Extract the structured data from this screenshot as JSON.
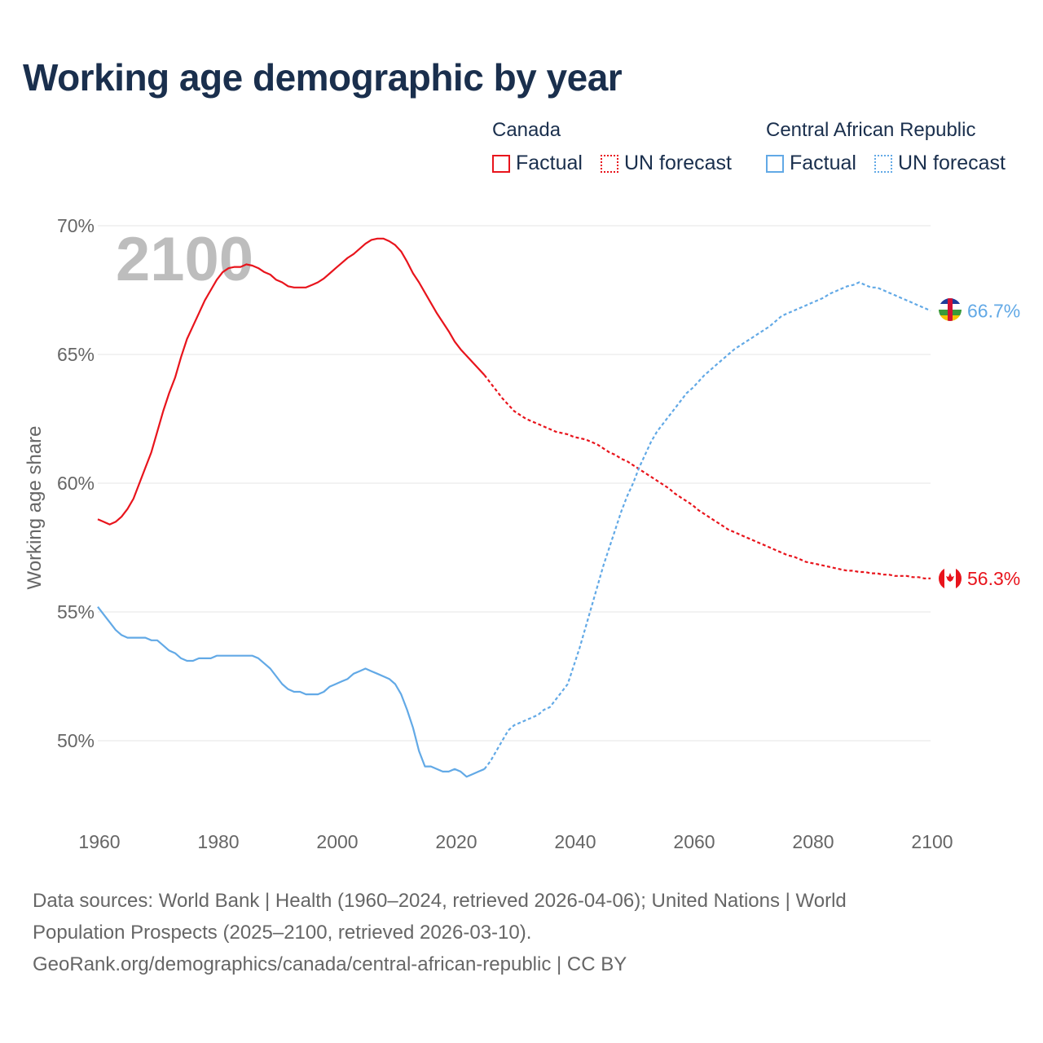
{
  "title": "Working age demographic by year",
  "legend": {
    "groups": [
      {
        "name": "Canada",
        "color": "#e8141c",
        "factual_label": "Factual",
        "forecast_label": "UN forecast"
      },
      {
        "name": "Central African Republic",
        "color": "#62a9e6",
        "factual_label": "Factual",
        "forecast_label": "UN forecast"
      }
    ]
  },
  "footer": {
    "line1": "Data sources: World Bank | Health (1960–2024, retrieved 2026-04-06); United Nations | World",
    "line2": "Population Prospects (2025–2100, retrieved 2026-03-10).",
    "line3": "GeoRank.org/demographics/canada/central-african-republic | CC BY"
  },
  "chart_data": {
    "type": "line",
    "title": "Working age demographic by year",
    "year_watermark": "2100",
    "xlabel": "",
    "ylabel": "Working age share",
    "xlim": [
      1960,
      2103
    ],
    "ylim": [
      47,
      70.5
    ],
    "x_ticks": [
      1960,
      1980,
      2000,
      2020,
      2040,
      2060,
      2080,
      2100
    ],
    "y_ticks": [
      50,
      55,
      60,
      65,
      70
    ],
    "y_tick_labels": [
      "50%",
      "55%",
      "60%",
      "65%",
      "70%"
    ],
    "grid": true,
    "forecast_start": 2025,
    "series": [
      {
        "name": "Canada",
        "color": "#e8141c",
        "end_label": "56.3%",
        "flag": "canada",
        "points": [
          [
            1960,
            58.6
          ],
          [
            1961,
            58.5
          ],
          [
            1962,
            58.4
          ],
          [
            1963,
            58.5
          ],
          [
            1964,
            58.7
          ],
          [
            1965,
            59.0
          ],
          [
            1966,
            59.4
          ],
          [
            1967,
            60.0
          ],
          [
            1968,
            60.6
          ],
          [
            1969,
            61.2
          ],
          [
            1970,
            62.0
          ],
          [
            1971,
            62.8
          ],
          [
            1972,
            63.5
          ],
          [
            1973,
            64.1
          ],
          [
            1974,
            64.9
          ],
          [
            1975,
            65.6
          ],
          [
            1976,
            66.1
          ],
          [
            1977,
            66.6
          ],
          [
            1978,
            67.1
          ],
          [
            1979,
            67.5
          ],
          [
            1980,
            67.9
          ],
          [
            1981,
            68.2
          ],
          [
            1982,
            68.35
          ],
          [
            1983,
            68.4
          ],
          [
            1984,
            68.4
          ],
          [
            1985,
            68.5
          ],
          [
            1986,
            68.45
          ],
          [
            1987,
            68.35
          ],
          [
            1988,
            68.2
          ],
          [
            1989,
            68.1
          ],
          [
            1990,
            67.9
          ],
          [
            1991,
            67.8
          ],
          [
            1992,
            67.65
          ],
          [
            1993,
            67.6
          ],
          [
            1994,
            67.6
          ],
          [
            1995,
            67.6
          ],
          [
            1996,
            67.7
          ],
          [
            1997,
            67.8
          ],
          [
            1998,
            67.95
          ],
          [
            1999,
            68.15
          ],
          [
            2000,
            68.35
          ],
          [
            2001,
            68.55
          ],
          [
            2002,
            68.75
          ],
          [
            2003,
            68.9
          ],
          [
            2004,
            69.1
          ],
          [
            2005,
            69.3
          ],
          [
            2006,
            69.45
          ],
          [
            2007,
            69.5
          ],
          [
            2008,
            69.5
          ],
          [
            2009,
            69.4
          ],
          [
            2010,
            69.25
          ],
          [
            2011,
            69.0
          ],
          [
            2012,
            68.6
          ],
          [
            2013,
            68.15
          ],
          [
            2014,
            67.8
          ],
          [
            2015,
            67.4
          ],
          [
            2016,
            67.0
          ],
          [
            2017,
            66.6
          ],
          [
            2018,
            66.25
          ],
          [
            2019,
            65.9
          ],
          [
            2020,
            65.5
          ],
          [
            2021,
            65.2
          ],
          [
            2022,
            64.95
          ],
          [
            2023,
            64.7
          ],
          [
            2024,
            64.45
          ],
          [
            2025,
            64.2
          ],
          [
            2026,
            63.9
          ],
          [
            2027,
            63.6
          ],
          [
            2028,
            63.3
          ],
          [
            2029,
            63.05
          ],
          [
            2030,
            62.8
          ],
          [
            2031,
            62.65
          ],
          [
            2032,
            62.5
          ],
          [
            2033,
            62.4
          ],
          [
            2034,
            62.3
          ],
          [
            2035,
            62.2
          ],
          [
            2036,
            62.1
          ],
          [
            2037,
            62.0
          ],
          [
            2038,
            61.95
          ],
          [
            2039,
            61.9
          ],
          [
            2040,
            61.8
          ],
          [
            2041,
            61.75
          ],
          [
            2042,
            61.7
          ],
          [
            2043,
            61.6
          ],
          [
            2044,
            61.5
          ],
          [
            2045,
            61.35
          ],
          [
            2046,
            61.2
          ],
          [
            2047,
            61.1
          ],
          [
            2048,
            60.95
          ],
          [
            2049,
            60.85
          ],
          [
            2050,
            60.7
          ],
          [
            2051,
            60.55
          ],
          [
            2052,
            60.4
          ],
          [
            2053,
            60.25
          ],
          [
            2054,
            60.1
          ],
          [
            2055,
            59.95
          ],
          [
            2056,
            59.8
          ],
          [
            2057,
            59.6
          ],
          [
            2058,
            59.45
          ],
          [
            2059,
            59.3
          ],
          [
            2060,
            59.15
          ],
          [
            2061,
            58.95
          ],
          [
            2062,
            58.8
          ],
          [
            2063,
            58.65
          ],
          [
            2064,
            58.5
          ],
          [
            2065,
            58.35
          ],
          [
            2066,
            58.2
          ],
          [
            2067,
            58.1
          ],
          [
            2068,
            58.0
          ],
          [
            2069,
            57.9
          ],
          [
            2070,
            57.8
          ],
          [
            2071,
            57.7
          ],
          [
            2072,
            57.6
          ],
          [
            2073,
            57.5
          ],
          [
            2074,
            57.4
          ],
          [
            2075,
            57.3
          ],
          [
            2076,
            57.2
          ],
          [
            2077,
            57.15
          ],
          [
            2078,
            57.05
          ],
          [
            2079,
            56.95
          ],
          [
            2080,
            56.9
          ],
          [
            2081,
            56.85
          ],
          [
            2082,
            56.8
          ],
          [
            2083,
            56.75
          ],
          [
            2084,
            56.7
          ],
          [
            2085,
            56.65
          ],
          [
            2086,
            56.6
          ],
          [
            2087,
            56.6
          ],
          [
            2088,
            56.55
          ],
          [
            2089,
            56.55
          ],
          [
            2090,
            56.5
          ],
          [
            2091,
            56.5
          ],
          [
            2092,
            56.45
          ],
          [
            2093,
            56.45
          ],
          [
            2094,
            56.4
          ],
          [
            2095,
            56.4
          ],
          [
            2096,
            56.4
          ],
          [
            2097,
            56.35
          ],
          [
            2098,
            56.35
          ],
          [
            2099,
            56.3
          ],
          [
            2100,
            56.3
          ]
        ]
      },
      {
        "name": "Central African Republic",
        "color": "#62a9e6",
        "end_label": "66.7%",
        "flag": "central-african-republic",
        "points": [
          [
            1960,
            55.2
          ],
          [
            1961,
            54.9
          ],
          [
            1962,
            54.6
          ],
          [
            1963,
            54.3
          ],
          [
            1964,
            54.1
          ],
          [
            1965,
            54.0
          ],
          [
            1966,
            54.0
          ],
          [
            1967,
            54.0
          ],
          [
            1968,
            54.0
          ],
          [
            1969,
            53.9
          ],
          [
            1970,
            53.9
          ],
          [
            1971,
            53.7
          ],
          [
            1972,
            53.5
          ],
          [
            1973,
            53.4
          ],
          [
            1974,
            53.2
          ],
          [
            1975,
            53.1
          ],
          [
            1976,
            53.1
          ],
          [
            1977,
            53.2
          ],
          [
            1978,
            53.2
          ],
          [
            1979,
            53.2
          ],
          [
            1980,
            53.3
          ],
          [
            1981,
            53.3
          ],
          [
            1982,
            53.3
          ],
          [
            1983,
            53.3
          ],
          [
            1984,
            53.3
          ],
          [
            1985,
            53.3
          ],
          [
            1986,
            53.3
          ],
          [
            1987,
            53.2
          ],
          [
            1988,
            53.0
          ],
          [
            1989,
            52.8
          ],
          [
            1990,
            52.5
          ],
          [
            1991,
            52.2
          ],
          [
            1992,
            52.0
          ],
          [
            1993,
            51.9
          ],
          [
            1994,
            51.9
          ],
          [
            1995,
            51.8
          ],
          [
            1996,
            51.8
          ],
          [
            1997,
            51.8
          ],
          [
            1998,
            51.9
          ],
          [
            1999,
            52.1
          ],
          [
            2000,
            52.2
          ],
          [
            2001,
            52.3
          ],
          [
            2002,
            52.4
          ],
          [
            2003,
            52.6
          ],
          [
            2004,
            52.7
          ],
          [
            2005,
            52.8
          ],
          [
            2006,
            52.7
          ],
          [
            2007,
            52.6
          ],
          [
            2008,
            52.5
          ],
          [
            2009,
            52.4
          ],
          [
            2010,
            52.2
          ],
          [
            2011,
            51.8
          ],
          [
            2012,
            51.2
          ],
          [
            2013,
            50.5
          ],
          [
            2014,
            49.6
          ],
          [
            2015,
            49.0
          ],
          [
            2016,
            49.0
          ],
          [
            2017,
            48.9
          ],
          [
            2018,
            48.8
          ],
          [
            2019,
            48.8
          ],
          [
            2020,
            48.9
          ],
          [
            2021,
            48.8
          ],
          [
            2022,
            48.6
          ],
          [
            2023,
            48.7
          ],
          [
            2024,
            48.8
          ],
          [
            2025,
            48.9
          ],
          [
            2026,
            49.2
          ],
          [
            2027,
            49.6
          ],
          [
            2028,
            50.0
          ],
          [
            2029,
            50.4
          ],
          [
            2030,
            50.6
          ],
          [
            2031,
            50.7
          ],
          [
            2032,
            50.8
          ],
          [
            2033,
            50.9
          ],
          [
            2034,
            51.0
          ],
          [
            2035,
            51.2
          ],
          [
            2036,
            51.3
          ],
          [
            2037,
            51.6
          ],
          [
            2038,
            51.9
          ],
          [
            2039,
            52.2
          ],
          [
            2040,
            52.9
          ],
          [
            2041,
            53.6
          ],
          [
            2042,
            54.4
          ],
          [
            2043,
            55.2
          ],
          [
            2044,
            56.0
          ],
          [
            2045,
            56.8
          ],
          [
            2046,
            57.5
          ],
          [
            2047,
            58.2
          ],
          [
            2048,
            58.9
          ],
          [
            2049,
            59.5
          ],
          [
            2050,
            60.0
          ],
          [
            2051,
            60.6
          ],
          [
            2052,
            61.1
          ],
          [
            2053,
            61.6
          ],
          [
            2054,
            62.0
          ],
          [
            2055,
            62.3
          ],
          [
            2056,
            62.6
          ],
          [
            2057,
            62.9
          ],
          [
            2058,
            63.2
          ],
          [
            2059,
            63.5
          ],
          [
            2060,
            63.7
          ],
          [
            2061,
            63.95
          ],
          [
            2062,
            64.2
          ],
          [
            2063,
            64.4
          ],
          [
            2064,
            64.6
          ],
          [
            2065,
            64.8
          ],
          [
            2066,
            65.0
          ],
          [
            2067,
            65.2
          ],
          [
            2068,
            65.35
          ],
          [
            2069,
            65.5
          ],
          [
            2070,
            65.65
          ],
          [
            2071,
            65.8
          ],
          [
            2072,
            65.95
          ],
          [
            2073,
            66.1
          ],
          [
            2074,
            66.3
          ],
          [
            2075,
            66.5
          ],
          [
            2076,
            66.6
          ],
          [
            2077,
            66.7
          ],
          [
            2078,
            66.8
          ],
          [
            2079,
            66.9
          ],
          [
            2080,
            67.0
          ],
          [
            2081,
            67.1
          ],
          [
            2082,
            67.2
          ],
          [
            2083,
            67.35
          ],
          [
            2084,
            67.45
          ],
          [
            2085,
            67.55
          ],
          [
            2086,
            67.65
          ],
          [
            2087,
            67.7
          ],
          [
            2088,
            67.8
          ],
          [
            2089,
            67.7
          ],
          [
            2090,
            67.6
          ],
          [
            2091,
            67.6
          ],
          [
            2092,
            67.5
          ],
          [
            2093,
            67.4
          ],
          [
            2094,
            67.3
          ],
          [
            2095,
            67.2
          ],
          [
            2096,
            67.1
          ],
          [
            2097,
            67.0
          ],
          [
            2098,
            66.9
          ],
          [
            2099,
            66.8
          ],
          [
            2100,
            66.7
          ]
        ]
      }
    ]
  }
}
